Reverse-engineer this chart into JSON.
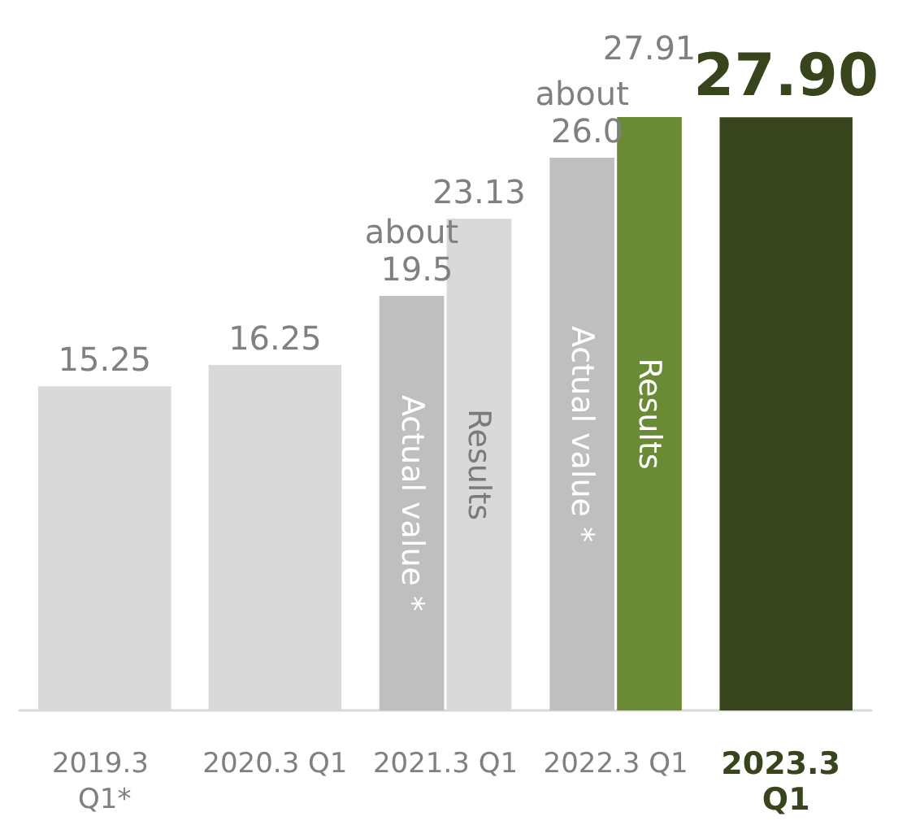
{
  "chart_data": {
    "type": "bar",
    "categories": [
      "2019.3 Q1*",
      "2020.3 Q1",
      "2021.3 Q1",
      "2022.3 Q1",
      "2023.3 Q1"
    ],
    "series": [
      {
        "values": [
          15.25,
          16.25,
          null,
          null,
          27.9
        ],
        "colors": [
          "#d9d9d9",
          "#d9d9d9",
          null,
          null,
          "#38451c"
        ],
        "value_labels": [
          "15.25",
          "16.25",
          null,
          null,
          "27.90"
        ]
      },
      {
        "name": "Actual value *",
        "color": "#bfbfbf",
        "values": [
          null,
          null,
          19.5,
          26.0,
          null
        ],
        "value_labels": [
          null,
          null,
          "about 19.5",
          "about 26.0",
          null
        ]
      },
      {
        "name": "Results",
        "values": [
          null,
          null,
          23.13,
          27.91,
          null
        ],
        "colors": [
          null,
          null,
          "#d9d9d9",
          "#6a8a35",
          null
        ],
        "value_labels": [
          null,
          null,
          "23.13",
          "27.91",
          null
        ]
      }
    ]
  }
}
